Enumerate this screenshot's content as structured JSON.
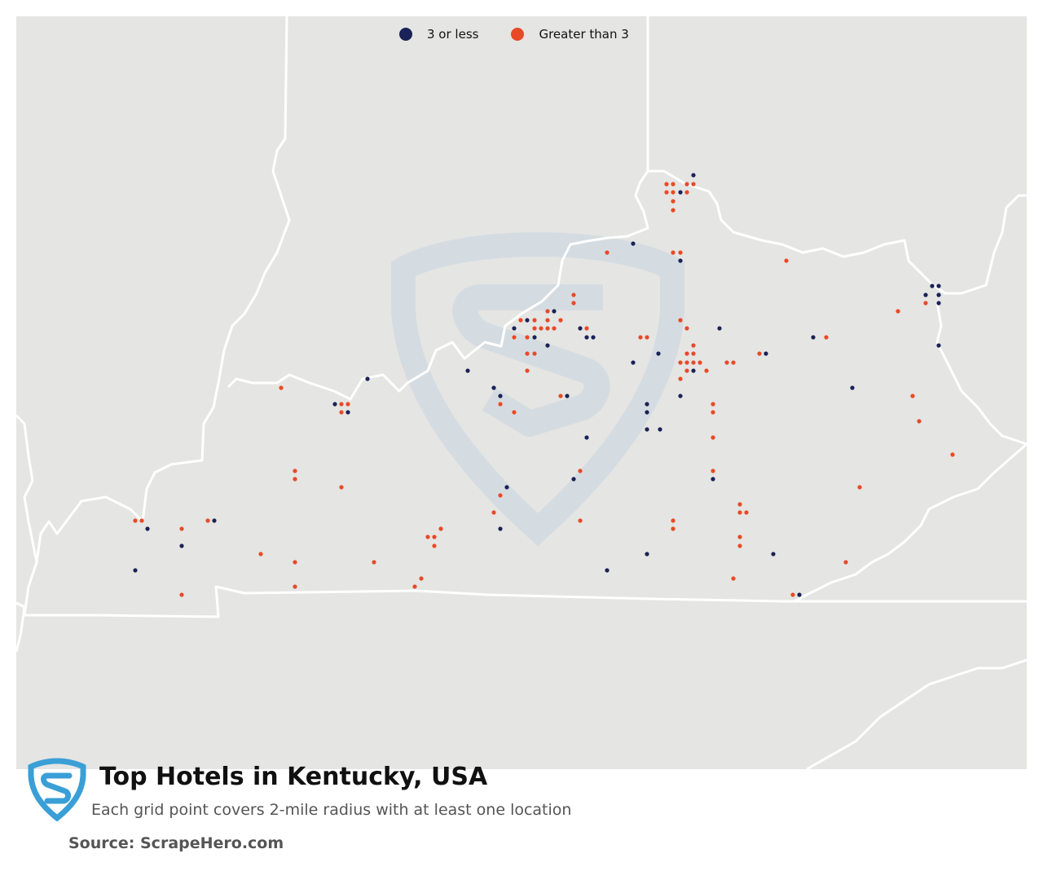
{
  "map": {
    "title": "Top Hotels in Kentucky, USA",
    "subtitle": "Each grid point covers 2-mile radius with at least one location",
    "source": "Source: ScrapeHero.com",
    "legend": [
      {
        "label": "3 or less",
        "color": "#1a2257"
      },
      {
        "label": "Greater than 3",
        "color": "#e84a27"
      }
    ],
    "colors": {
      "background": "#e5e5e3",
      "borders": "#ffffff",
      "watermark": "#c9d6e0",
      "logo": "#3a9fd6"
    }
  },
  "chart_data": {
    "type": "scatter",
    "series": [
      {
        "name": "3 or less",
        "color": "#1a2257",
        "points": [
          [
            851,
            215
          ],
          [
            835,
            236
          ],
          [
            777,
            299
          ],
          [
            835,
            320
          ],
          [
            1144,
            351
          ],
          [
            1152,
            351
          ],
          [
            1136,
            362
          ],
          [
            1152,
            362
          ],
          [
            1152,
            372
          ],
          [
            631,
            403
          ],
          [
            647,
            393
          ],
          [
            680,
            382
          ],
          [
            656,
            414
          ],
          [
            712,
            403
          ],
          [
            720,
            414
          ],
          [
            728,
            414
          ],
          [
            883,
            403
          ],
          [
            998,
            414
          ],
          [
            672,
            424
          ],
          [
            808,
            434
          ],
          [
            940,
            434
          ],
          [
            1152,
            424
          ],
          [
            777,
            445
          ],
          [
            851,
            455
          ],
          [
            574,
            455
          ],
          [
            451,
            465
          ],
          [
            606,
            476
          ],
          [
            614,
            486
          ],
          [
            696,
            486
          ],
          [
            835,
            486
          ],
          [
            1046,
            476
          ],
          [
            411,
            496
          ],
          [
            427,
            506
          ],
          [
            794,
            496
          ],
          [
            794,
            506
          ],
          [
            794,
            527
          ],
          [
            810,
            527
          ],
          [
            720,
            537
          ],
          [
            704,
            588
          ],
          [
            875,
            588
          ],
          [
            622,
            598
          ],
          [
            181,
            649
          ],
          [
            263,
            639
          ],
          [
            223,
            670
          ],
          [
            614,
            649
          ],
          [
            794,
            680
          ],
          [
            949,
            680
          ],
          [
            166,
            700
          ],
          [
            745,
            700
          ],
          [
            981,
            730
          ]
        ]
      },
      {
        "name": "Greater than 3",
        "color": "#e84a27",
        "points": [
          [
            818,
            226
          ],
          [
            826,
            226
          ],
          [
            843,
            226
          ],
          [
            851,
            226
          ],
          [
            818,
            236
          ],
          [
            826,
            236
          ],
          [
            843,
            236
          ],
          [
            826,
            247
          ],
          [
            826,
            258
          ],
          [
            745,
            310
          ],
          [
            826,
            310
          ],
          [
            835,
            310
          ],
          [
            965,
            320
          ],
          [
            704,
            362
          ],
          [
            704,
            372
          ],
          [
            672,
            382
          ],
          [
            639,
            393
          ],
          [
            656,
            393
          ],
          [
            672,
            393
          ],
          [
            688,
            393
          ],
          [
            1102,
            382
          ],
          [
            1136,
            372
          ],
          [
            631,
            414
          ],
          [
            647,
            414
          ],
          [
            656,
            403
          ],
          [
            664,
            403
          ],
          [
            672,
            403
          ],
          [
            680,
            403
          ],
          [
            720,
            403
          ],
          [
            786,
            414
          ],
          [
            794,
            414
          ],
          [
            835,
            393
          ],
          [
            843,
            403
          ],
          [
            1014,
            414
          ],
          [
            647,
            434
          ],
          [
            656,
            434
          ],
          [
            851,
            424
          ],
          [
            843,
            434
          ],
          [
            851,
            434
          ],
          [
            932,
            434
          ],
          [
            835,
            445
          ],
          [
            843,
            445
          ],
          [
            851,
            445
          ],
          [
            859,
            445
          ],
          [
            867,
            455
          ],
          [
            892,
            445
          ],
          [
            900,
            445
          ],
          [
            843,
            455
          ],
          [
            647,
            455
          ],
          [
            835,
            465
          ],
          [
            345,
            476
          ],
          [
            688,
            486
          ],
          [
            1120,
            486
          ],
          [
            419,
            496
          ],
          [
            427,
            496
          ],
          [
            614,
            496
          ],
          [
            875,
            496
          ],
          [
            419,
            506
          ],
          [
            631,
            506
          ],
          [
            875,
            506
          ],
          [
            1128,
            517
          ],
          [
            875,
            537
          ],
          [
            1169,
            558
          ],
          [
            362,
            578
          ],
          [
            712,
            578
          ],
          [
            875,
            578
          ],
          [
            362,
            588
          ],
          [
            419,
            598
          ],
          [
            1055,
            598
          ],
          [
            614,
            608
          ],
          [
            908,
            619
          ],
          [
            606,
            629
          ],
          [
            908,
            629
          ],
          [
            916,
            629
          ],
          [
            166,
            639
          ],
          [
            174,
            639
          ],
          [
            255,
            639
          ],
          [
            712,
            639
          ],
          [
            826,
            639
          ],
          [
            223,
            649
          ],
          [
            541,
            649
          ],
          [
            826,
            649
          ],
          [
            525,
            659
          ],
          [
            533,
            659
          ],
          [
            908,
            659
          ],
          [
            533,
            670
          ],
          [
            908,
            670
          ],
          [
            320,
            680
          ],
          [
            362,
            690
          ],
          [
            459,
            690
          ],
          [
            1038,
            690
          ],
          [
            517,
            710
          ],
          [
            900,
            710
          ],
          [
            362,
            720
          ],
          [
            509,
            720
          ],
          [
            223,
            730
          ],
          [
            973,
            730
          ]
        ]
      }
    ]
  }
}
